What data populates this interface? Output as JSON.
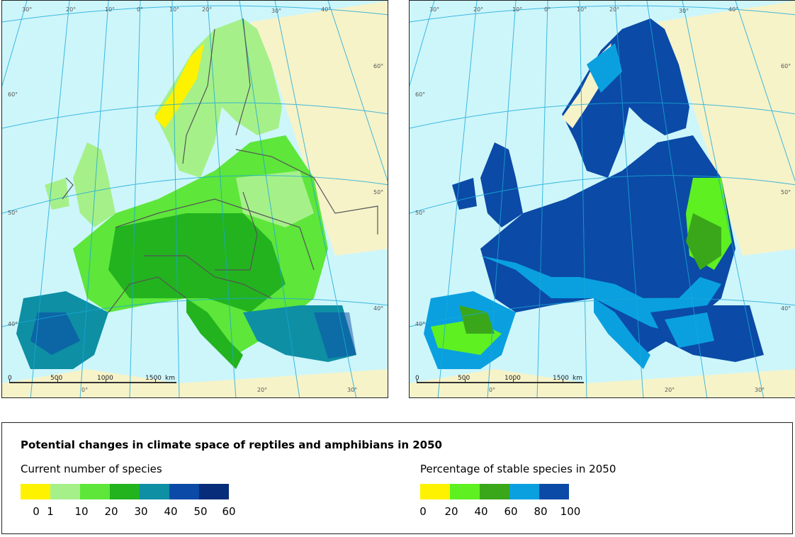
{
  "maps": {
    "left": {
      "grid_labels": [
        "30°",
        "20°",
        "10°",
        "0°",
        "10°",
        "20°",
        "30°",
        "40°",
        "60°",
        "60°",
        "50°",
        "40°",
        "50°",
        "40°",
        "20°",
        "30°",
        "0°"
      ],
      "scale": {
        "labels": [
          "0",
          "500",
          "1000",
          "1500"
        ],
        "unit": "km"
      }
    },
    "right": {
      "grid_labels": [
        "30°",
        "20°",
        "10°",
        "0°",
        "10°",
        "20°",
        "30°",
        "40°",
        "60°",
        "60°",
        "50°",
        "40°",
        "50°",
        "40°",
        "20°",
        "30°",
        "0°"
      ],
      "scale": {
        "labels": [
          "0",
          "500",
          "1000",
          "1500"
        ],
        "unit": "km"
      }
    }
  },
  "legend": {
    "title": "Potential changes in climate space of reptiles and amphibians in 2050",
    "current": {
      "heading": "Current number of species",
      "colors": [
        "#fff200",
        "#a6f08a",
        "#5ee63a",
        "#22b31f",
        "#0e8fa4",
        "#0b4aa6",
        "#062c7a"
      ],
      "ticks": [
        "0",
        "1",
        "10",
        "20",
        "30",
        "40",
        "50",
        "60"
      ]
    },
    "stable": {
      "heading": "Percentage of stable species in 2050",
      "colors": [
        "#fff200",
        "#5ef021",
        "#3aa71a",
        "#0aa0e0",
        "#0b4aa6"
      ],
      "ticks": [
        "0",
        "20",
        "40",
        "60",
        "80",
        "100"
      ]
    }
  }
}
